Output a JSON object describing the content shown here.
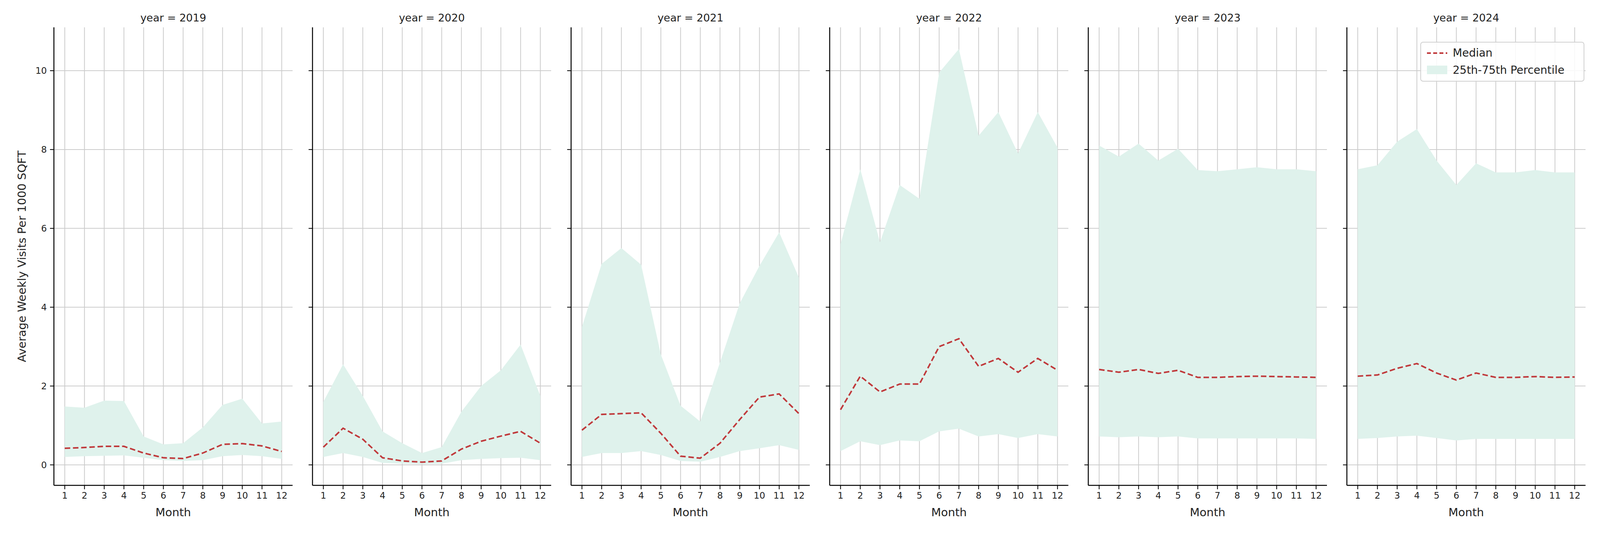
{
  "chart_data": {
    "type": "line",
    "y_label": "Average Weekly Visits Per 1000 SQFT",
    "x_label": "Month",
    "x": [
      1,
      2,
      3,
      4,
      5,
      6,
      7,
      8,
      9,
      10,
      11,
      12
    ],
    "xlim": [
      0.45,
      12.55
    ],
    "ylim": [
      -0.52,
      11.1
    ],
    "xticks": [
      1,
      2,
      3,
      4,
      5,
      6,
      7,
      8,
      9,
      10,
      11,
      12
    ],
    "yticks": [
      0,
      2,
      4,
      6,
      8,
      10
    ],
    "grid": true,
    "legend": "upper right",
    "series": [
      {
        "name": "Median",
        "color": "#c0393b",
        "line_style": "dashed"
      },
      {
        "name": "25th-75th Percentile",
        "color": "#dff2ec",
        "type": "area"
      }
    ],
    "panels": [
      {
        "title": "year = 2019",
        "values": [
          0.42,
          0.44,
          0.47,
          0.47,
          0.3,
          0.18,
          0.16,
          0.3,
          0.52,
          0.54,
          0.48,
          0.34
        ],
        "lower": [
          0.2,
          0.22,
          0.23,
          0.24,
          0.18,
          0.12,
          0.1,
          0.12,
          0.22,
          0.25,
          0.22,
          0.15
        ],
        "upper": [
          1.48,
          1.45,
          1.63,
          1.62,
          0.72,
          0.52,
          0.55,
          0.95,
          1.52,
          1.68,
          1.05,
          1.1
        ]
      },
      {
        "title": "year = 2020",
        "values": [
          0.45,
          0.93,
          0.65,
          0.18,
          0.1,
          0.07,
          0.1,
          0.4,
          0.6,
          0.73,
          0.85,
          0.55
        ],
        "lower": [
          0.2,
          0.3,
          0.2,
          0.05,
          0.03,
          0.02,
          0.03,
          0.12,
          0.15,
          0.17,
          0.18,
          0.12
        ],
        "upper": [
          1.6,
          2.55,
          1.75,
          0.85,
          0.55,
          0.3,
          0.45,
          1.35,
          2.0,
          2.4,
          3.05,
          1.75
        ]
      },
      {
        "title": "year = 2021",
        "values": [
          0.88,
          1.28,
          1.3,
          1.32,
          0.8,
          0.22,
          0.17,
          0.55,
          1.15,
          1.72,
          1.8,
          1.3
        ],
        "lower": [
          0.2,
          0.3,
          0.3,
          0.35,
          0.25,
          0.1,
          0.08,
          0.2,
          0.35,
          0.42,
          0.5,
          0.38
        ],
        "upper": [
          3.5,
          5.1,
          5.5,
          5.08,
          2.8,
          1.5,
          1.1,
          2.6,
          4.1,
          5.05,
          5.9,
          4.75
        ]
      },
      {
        "title": "year = 2022",
        "values": [
          1.4,
          2.25,
          1.85,
          2.05,
          2.05,
          3.0,
          3.2,
          2.5,
          2.7,
          2.35,
          2.7,
          2.4
        ],
        "lower": [
          0.35,
          0.6,
          0.5,
          0.62,
          0.6,
          0.85,
          0.92,
          0.72,
          0.78,
          0.68,
          0.78,
          0.72
        ],
        "upper": [
          5.6,
          7.5,
          5.65,
          7.1,
          6.75,
          9.95,
          10.55,
          8.35,
          8.95,
          7.9,
          8.95,
          8.05
        ]
      },
      {
        "title": "year = 2023",
        "values": [
          2.42,
          2.35,
          2.42,
          2.32,
          2.4,
          2.22,
          2.22,
          2.24,
          2.25,
          2.24,
          2.23,
          2.22
        ],
        "lower": [
          0.72,
          0.7,
          0.72,
          0.7,
          0.72,
          0.67,
          0.67,
          0.67,
          0.67,
          0.67,
          0.67,
          0.66
        ],
        "upper": [
          8.1,
          7.82,
          8.15,
          7.72,
          8.02,
          7.48,
          7.45,
          7.5,
          7.55,
          7.5,
          7.5,
          7.45
        ]
      },
      {
        "title": "year = 2024",
        "values": [
          2.25,
          2.28,
          2.45,
          2.57,
          2.33,
          2.15,
          2.33,
          2.22,
          2.22,
          2.24,
          2.22,
          2.23
        ],
        "lower": [
          0.66,
          0.68,
          0.72,
          0.74,
          0.68,
          0.62,
          0.66,
          0.66,
          0.66,
          0.66,
          0.66,
          0.66
        ],
        "upper": [
          7.5,
          7.6,
          8.2,
          8.52,
          7.72,
          7.1,
          7.65,
          7.42,
          7.42,
          7.48,
          7.42,
          7.42
        ]
      }
    ]
  }
}
